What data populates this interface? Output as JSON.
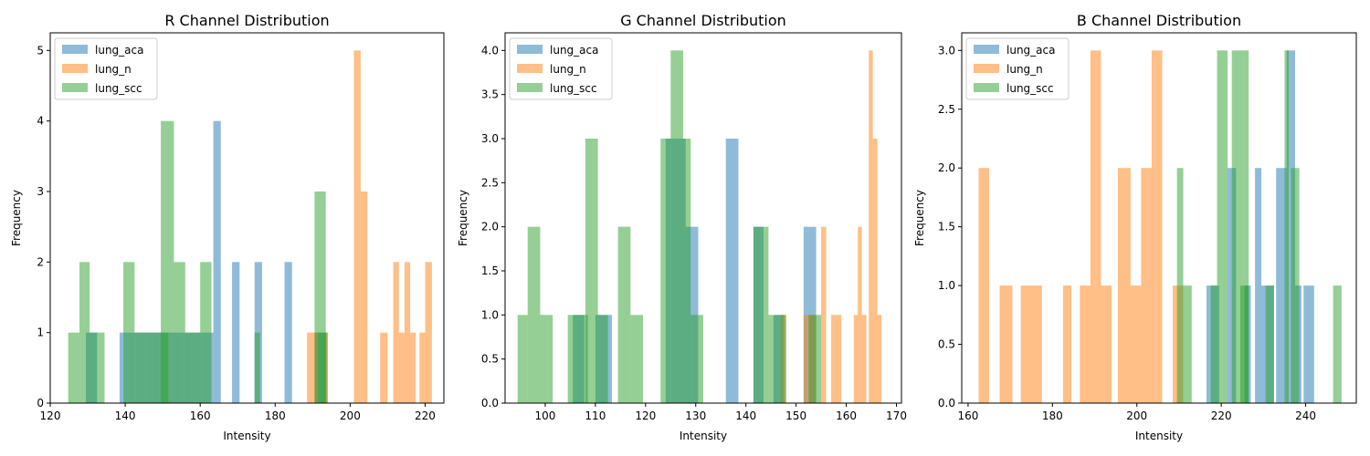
{
  "colors": {
    "lung_aca": "#1f77b4",
    "lung_n": "#ff7f0e",
    "lung_scc": "#2ca02c"
  },
  "chart_data": [
    {
      "type": "histogram",
      "title": "R Channel Distribution",
      "xlabel": "Intensity",
      "ylabel": "Frequency",
      "xlim": [
        120,
        225
      ],
      "ylim": [
        0,
        5.25
      ],
      "xticks": [
        120,
        140,
        160,
        180,
        200,
        220
      ],
      "yticks": [
        0,
        1,
        2,
        3,
        4,
        5
      ],
      "legend_position": "upper-left",
      "grid": false,
      "series": [
        {
          "name": "lung_aca",
          "key": "lung_aca",
          "bins": [
            [
              129.5,
              132.5,
              1
            ],
            [
              138.5,
              140.5,
              1
            ],
            [
              140.5,
              142.5,
              1
            ],
            [
              142.5,
              145.5,
              1
            ],
            [
              145.5,
              147.5,
              1
            ],
            [
              147.5,
              150.5,
              1
            ],
            [
              150.5,
              152.5,
              1
            ],
            [
              152.5,
              155.5,
              1
            ],
            [
              155.5,
              157.5,
              1
            ],
            [
              157.5,
              160.5,
              1
            ],
            [
              160.5,
              163.5,
              1
            ],
            [
              163.5,
              165.5,
              4
            ],
            [
              168.5,
              170.5,
              2
            ],
            [
              174.5,
              176.5,
              2
            ],
            [
              182.5,
              184.5,
              2
            ],
            [
              190.5,
              193.5,
              1
            ]
          ]
        },
        {
          "name": "lung_n",
          "key": "lung_n",
          "bins": [
            [
              188.5,
              191.5,
              1
            ],
            [
              193.0,
              194.0,
              1
            ],
            [
              201.0,
              202.8,
              5
            ],
            [
              202.8,
              204.6,
              3
            ],
            [
              208.0,
              210.0,
              1
            ],
            [
              211.5,
              213.0,
              2
            ],
            [
              213.0,
              214.5,
              1
            ],
            [
              214.5,
              216.0,
              2
            ],
            [
              216.0,
              217.5,
              1
            ],
            [
              218.5,
              220.0,
              1
            ],
            [
              220.0,
              221.8,
              2
            ]
          ]
        },
        {
          "name": "lung_scc",
          "key": "lung_scc",
          "bins": [
            [
              124.8,
              127.8,
              1
            ],
            [
              127.8,
              130.5,
              2
            ],
            [
              130.5,
              132.5,
              1
            ],
            [
              132.5,
              134.5,
              1
            ],
            [
              139.5,
              142.5,
              2
            ],
            [
              142.5,
              145.5,
              1
            ],
            [
              145.5,
              148.5,
              1
            ],
            [
              148.5,
              151.5,
              1
            ],
            [
              149.5,
              153.0,
              4
            ],
            [
              153.0,
              156.0,
              2
            ],
            [
              156.0,
              160.0,
              1
            ],
            [
              160.0,
              163.0,
              2
            ],
            [
              174.5,
              176.0,
              1
            ],
            [
              190.5,
              193.5,
              3
            ],
            [
              191.5,
              194.0,
              1
            ]
          ]
        }
      ]
    },
    {
      "type": "histogram",
      "title": "G Channel Distribution",
      "xlabel": "Intensity",
      "ylabel": "Frequency",
      "xlim": [
        92,
        171
      ],
      "ylim": [
        0,
        4.2
      ],
      "xticks": [
        100,
        110,
        120,
        130,
        140,
        150,
        160,
        170
      ],
      "yticks": [
        0.0,
        0.5,
        1.0,
        1.5,
        2.0,
        2.5,
        3.0,
        3.5,
        4.0
      ],
      "legend_position": "upper-left",
      "grid": false,
      "series": [
        {
          "name": "lung_aca",
          "key": "lung_aca",
          "bins": [
            [
              105.5,
              107.8,
              1
            ],
            [
              110.0,
              112.2,
              1
            ],
            [
              112.2,
              113.3,
              1
            ],
            [
              124.0,
              126.5,
              3
            ],
            [
              126.5,
              128.0,
              3
            ],
            [
              128.0,
              130.5,
              2
            ],
            [
              136.0,
              138.5,
              3
            ],
            [
              141.5,
              143.5,
              2
            ],
            [
              145.5,
              147.5,
              1
            ],
            [
              151.5,
              154.0,
              2
            ]
          ]
        },
        {
          "name": "lung_n",
          "key": "lung_n",
          "bins": [
            [
              147.0,
              148.0,
              1
            ],
            [
              151.5,
              152.3,
              1
            ],
            [
              152.3,
              153.1,
              1
            ],
            [
              153.1,
              154.0,
              1
            ],
            [
              155.0,
              156.0,
              2
            ],
            [
              157.0,
              159.0,
              1
            ],
            [
              161.5,
              162.3,
              1
            ],
            [
              162.3,
              163.1,
              2
            ],
            [
              163.1,
              164.0,
              1
            ],
            [
              164.5,
              165.3,
              4
            ],
            [
              165.3,
              166.2,
              3
            ],
            [
              166.2,
              167.0,
              1
            ]
          ]
        },
        {
          "name": "lung_scc",
          "key": "lung_scc",
          "bins": [
            [
              94.5,
              96.5,
              1
            ],
            [
              96.5,
              99.0,
              2
            ],
            [
              99.0,
              101.5,
              1
            ],
            [
              104.5,
              106.5,
              1
            ],
            [
              106.5,
              108.5,
              1
            ],
            [
              108.0,
              110.5,
              3
            ],
            [
              110.5,
              112.5,
              1
            ],
            [
              114.5,
              117.0,
              2
            ],
            [
              117.0,
              119.5,
              1
            ],
            [
              123.0,
              125.0,
              3
            ],
            [
              125.0,
              127.5,
              4
            ],
            [
              127.5,
              129.0,
              3
            ],
            [
              129.0,
              131.5,
              1
            ],
            [
              141.5,
              143.0,
              2
            ],
            [
              143.0,
              144.5,
              2
            ],
            [
              144.5,
              148.0,
              1
            ],
            [
              152.5,
              155.0,
              1
            ]
          ]
        }
      ]
    },
    {
      "type": "histogram",
      "title": "B Channel Distribution",
      "xlabel": "Intensity",
      "ylabel": "Frequency",
      "xlim": [
        158.5,
        252
      ],
      "ylim": [
        0,
        3.15
      ],
      "xticks": [
        160,
        180,
        200,
        220,
        240
      ],
      "yticks": [
        0.0,
        0.5,
        1.0,
        1.5,
        2.0,
        2.5,
        3.0
      ],
      "legend_position": "upper-left",
      "grid": false,
      "series": [
        {
          "name": "lung_aca",
          "key": "lung_aca",
          "bins": [
            [
              216.5,
              219.5,
              1
            ],
            [
              221.5,
              223.5,
              2
            ],
            [
              225.5,
              227.0,
              1
            ],
            [
              228.0,
              229.5,
              2
            ],
            [
              229.5,
              232.5,
              1
            ],
            [
              233.0,
              235.5,
              2
            ],
            [
              235.5,
              237.5,
              3
            ],
            [
              237.5,
              239.0,
              1
            ],
            [
              239.5,
              242.0,
              1
            ]
          ]
        },
        {
          "name": "lung_n",
          "key": "lung_n",
          "bins": [
            [
              162.5,
              165.0,
              2
            ],
            [
              167.5,
              170.5,
              1
            ],
            [
              172.5,
              175.5,
              1
            ],
            [
              175.5,
              177.5,
              1
            ],
            [
              182.5,
              184.5,
              1
            ],
            [
              186.5,
              189.0,
              1
            ],
            [
              189.0,
              191.5,
              3
            ],
            [
              191.5,
              194.0,
              1
            ],
            [
              195.5,
              198.5,
              2
            ],
            [
              198.5,
              201.0,
              1
            ],
            [
              201.0,
              203.5,
              2
            ],
            [
              203.5,
              206.0,
              3
            ],
            [
              208.5,
              211.0,
              1
            ]
          ]
        },
        {
          "name": "lung_scc",
          "key": "lung_scc",
          "bins": [
            [
              209.5,
              211.0,
              2
            ],
            [
              211.0,
              213.0,
              1
            ],
            [
              217.5,
              219.0,
              1
            ],
            [
              219.0,
              221.5,
              3
            ],
            [
              222.5,
              226.5,
              3
            ],
            [
              224.5,
              226.5,
              1
            ],
            [
              230.5,
              232.5,
              1
            ],
            [
              235.0,
              236.0,
              3
            ],
            [
              236.5,
              238.5,
              2
            ],
            [
              246.5,
              248.5,
              1
            ]
          ]
        }
      ]
    }
  ]
}
